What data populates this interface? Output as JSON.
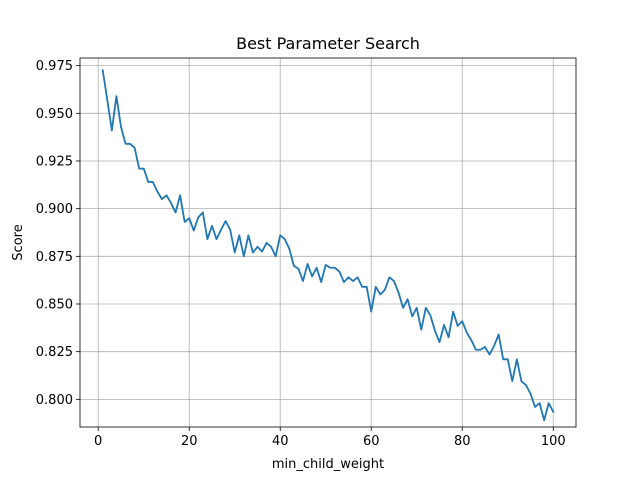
{
  "chart_data": {
    "type": "line",
    "title": "Best Parameter Search",
    "xlabel": "min_child_weight",
    "ylabel": "Score",
    "xlim": [
      -4,
      105
    ],
    "ylim": [
      0.7855,
      0.979
    ],
    "xticks": [
      0,
      20,
      40,
      60,
      80,
      100
    ],
    "yticks": [
      0.8,
      0.825,
      0.85,
      0.875,
      0.9,
      0.925,
      0.95,
      0.975
    ],
    "ytick_labels": [
      "0.800",
      "0.825",
      "0.850",
      "0.875",
      "0.900",
      "0.925",
      "0.950",
      "0.975"
    ],
    "grid": true,
    "series": [
      {
        "color": "#1f77b4",
        "x": [
          1,
          2,
          3,
          4,
          5,
          6,
          7,
          8,
          9,
          10,
          11,
          12,
          13,
          14,
          15,
          16,
          17,
          18,
          19,
          20,
          21,
          22,
          23,
          24,
          25,
          26,
          27,
          28,
          29,
          30,
          31,
          32,
          33,
          34,
          35,
          36,
          37,
          38,
          39,
          40,
          41,
          42,
          43,
          44,
          45,
          46,
          47,
          48,
          49,
          50,
          51,
          52,
          53,
          54,
          55,
          56,
          57,
          58,
          59,
          60,
          61,
          62,
          63,
          64,
          65,
          66,
          67,
          68,
          69,
          70,
          71,
          72,
          73,
          74,
          75,
          76,
          77,
          78,
          79,
          80,
          81,
          82,
          83,
          84,
          85,
          86,
          87,
          88,
          89,
          90,
          91,
          92,
          93,
          94,
          95,
          96,
          97,
          98,
          99,
          100
        ],
        "values": [
          0.9725,
          0.957,
          0.941,
          0.959,
          0.943,
          0.934,
          0.934,
          0.932,
          0.921,
          0.921,
          0.914,
          0.914,
          0.909,
          0.905,
          0.907,
          0.903,
          0.898,
          0.907,
          0.893,
          0.895,
          0.8885,
          0.8955,
          0.898,
          0.884,
          0.891,
          0.884,
          0.889,
          0.8935,
          0.889,
          0.877,
          0.886,
          0.875,
          0.886,
          0.877,
          0.88,
          0.8775,
          0.882,
          0.88,
          0.875,
          0.886,
          0.884,
          0.879,
          0.87,
          0.8685,
          0.862,
          0.871,
          0.8645,
          0.869,
          0.8615,
          0.8705,
          0.869,
          0.869,
          0.867,
          0.8615,
          0.864,
          0.862,
          0.864,
          0.859,
          0.859,
          0.846,
          0.859,
          0.855,
          0.8575,
          0.864,
          0.862,
          0.856,
          0.848,
          0.8525,
          0.8435,
          0.848,
          0.8365,
          0.848,
          0.844,
          0.836,
          0.83,
          0.839,
          0.8325,
          0.846,
          0.8385,
          0.841,
          0.835,
          0.831,
          0.826,
          0.826,
          0.8275,
          0.8235,
          0.828,
          0.834,
          0.821,
          0.821,
          0.8095,
          0.821,
          0.8095,
          0.8075,
          0.803,
          0.796,
          0.798,
          0.789,
          0.798,
          0.7935
        ]
      }
    ]
  }
}
